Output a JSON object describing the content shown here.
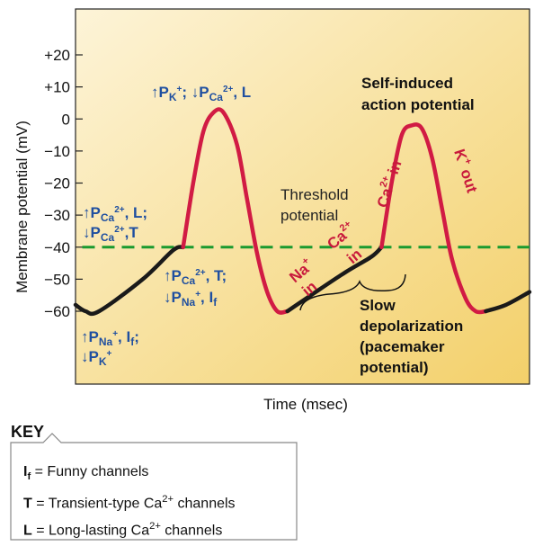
{
  "colors": {
    "background_top": "#fdf1cf",
    "background_bottom": "#f3d06a",
    "trace_red": "#d11b44",
    "trace_black": "#1a1a1a",
    "threshold_green": "#1a9a2f",
    "annotation_blue": "#1f4fa0",
    "label_red": "#c81a3c"
  },
  "chart_data": {
    "type": "line",
    "xlabel": "Time (msec)",
    "ylabel": "Membrane potential (mV)",
    "ylim": [
      -95,
      54
    ],
    "yticks": [
      {
        "value": 20,
        "label": "+20"
      },
      {
        "value": 10,
        "label": "+10"
      },
      {
        "value": 0,
        "label": "0"
      },
      {
        "value": -10,
        "label": "−10"
      },
      {
        "value": -20,
        "label": "−20"
      },
      {
        "value": -30,
        "label": "−30"
      },
      {
        "value": -40,
        "label": "−40"
      },
      {
        "value": -50,
        "label": "−50"
      },
      {
        "value": -60,
        "label": "−60"
      }
    ],
    "threshold": -40,
    "series": [
      {
        "segment": "pacemaker-1",
        "color": "black",
        "points": [
          [
            0,
            -58
          ],
          [
            3,
            -60
          ],
          [
            7,
            -60
          ],
          [
            20,
            -50
          ],
          [
            29,
            -41
          ],
          [
            32,
            -40
          ]
        ]
      },
      {
        "segment": "action-potential-1",
        "color": "red",
        "points": [
          [
            32,
            -40
          ],
          [
            35,
            -20
          ],
          [
            38,
            -4
          ],
          [
            41,
            2
          ],
          [
            44,
            2
          ],
          [
            48,
            -8
          ],
          [
            51,
            -25
          ],
          [
            54,
            -42
          ],
          [
            57,
            -54
          ],
          [
            60,
            -60
          ],
          [
            63,
            -60
          ]
        ]
      },
      {
        "segment": "pacemaker-2",
        "color": "black",
        "points": [
          [
            63,
            -60
          ],
          [
            70,
            -55
          ],
          [
            80,
            -48
          ],
          [
            88,
            -43
          ],
          [
            91,
            -40
          ]
        ]
      },
      {
        "segment": "action-potential-2",
        "color": "red",
        "points": [
          [
            91,
            -40
          ],
          [
            94,
            -20
          ],
          [
            97,
            -5
          ],
          [
            100,
            -2
          ],
          [
            103,
            -3
          ],
          [
            106,
            -12
          ],
          [
            109,
            -28
          ],
          [
            112,
            -44
          ],
          [
            116,
            -56
          ],
          [
            119,
            -60
          ],
          [
            122,
            -60
          ]
        ]
      },
      {
        "segment": "pacemaker-3",
        "color": "black",
        "points": [
          [
            122,
            -60
          ],
          [
            128,
            -58
          ],
          [
            135,
            -54
          ]
        ]
      }
    ]
  },
  "annotations": {
    "before_peak_1_a": "↑P",
    "before_peak_1_a_sub": "K",
    "before_peak_1_a_sup": "+",
    "before_peak_1_b": "; ↓P",
    "before_peak_1_b_sub": "Ca",
    "before_peak_1_b_sup": "2+",
    "before_peak_1_c": ", L",
    "upstroke_1_line1": "↑P",
    "upstroke_1_line1_sub": "Ca",
    "upstroke_1_line1_sup": "2+",
    "upstroke_1_line1_end": ", L;",
    "upstroke_1_line2": "↓P",
    "upstroke_1_line2_sub": "Ca",
    "upstroke_1_line2_sup": "2+",
    "upstroke_1_line2_end": ",T",
    "pacemaker_1_line1": "↑P",
    "pacemaker_1_line1_sub": "Ca",
    "pacemaker_1_line1_sup": "2+",
    "pacemaker_1_line1_end": ", T;",
    "pacemaker_1_line2": "↓P",
    "pacemaker_1_line2_sub": "Na",
    "pacemaker_1_line2_sup": "+",
    "pacemaker_1_line2_end": ", I",
    "pacemaker_1_line2_i_sub": "f",
    "diastole_line1": "↑P",
    "diastole_line1_sub": "Na",
    "diastole_line1_sup": "+",
    "diastole_line1_end": ", I",
    "diastole_line1_i_sub": "f",
    "diastole_line1_tail": ";",
    "diastole_line2": "↓P",
    "diastole_line2_sub": "K",
    "diastole_line2_sup": "+",
    "self_induced_line1": "Self-induced",
    "self_induced_line2": "action potential",
    "threshold_line1": "Threshold",
    "threshold_line2": "potential",
    "slow_line1": "Slow",
    "slow_line2": "depolarization",
    "slow_line3": "(pacemaker",
    "slow_line4": "potential)",
    "na_in_a": "Na",
    "na_in_sup": "+",
    "na_in_b": "in",
    "ca_in_low_a": "Ca",
    "ca_in_low_sup": "2+",
    "ca_in_low_b": "in",
    "ca_in_high_a": "Ca",
    "ca_in_high_sup": "2+",
    "ca_in_high_b": " in",
    "k_out_a": "K",
    "k_out_sup": "+",
    "k_out_b": " out"
  },
  "key": {
    "title": "KEY",
    "items": [
      {
        "symbol": "I",
        "symbol_sub": "f",
        "text": " = Funny channels"
      },
      {
        "symbol": "T",
        "text": " = Transient-type Ca",
        "sup": "2+",
        "tail": " channels"
      },
      {
        "symbol": "L",
        "text": " = Long-lasting Ca",
        "sup": "2+",
        "tail": " channels"
      }
    ]
  }
}
